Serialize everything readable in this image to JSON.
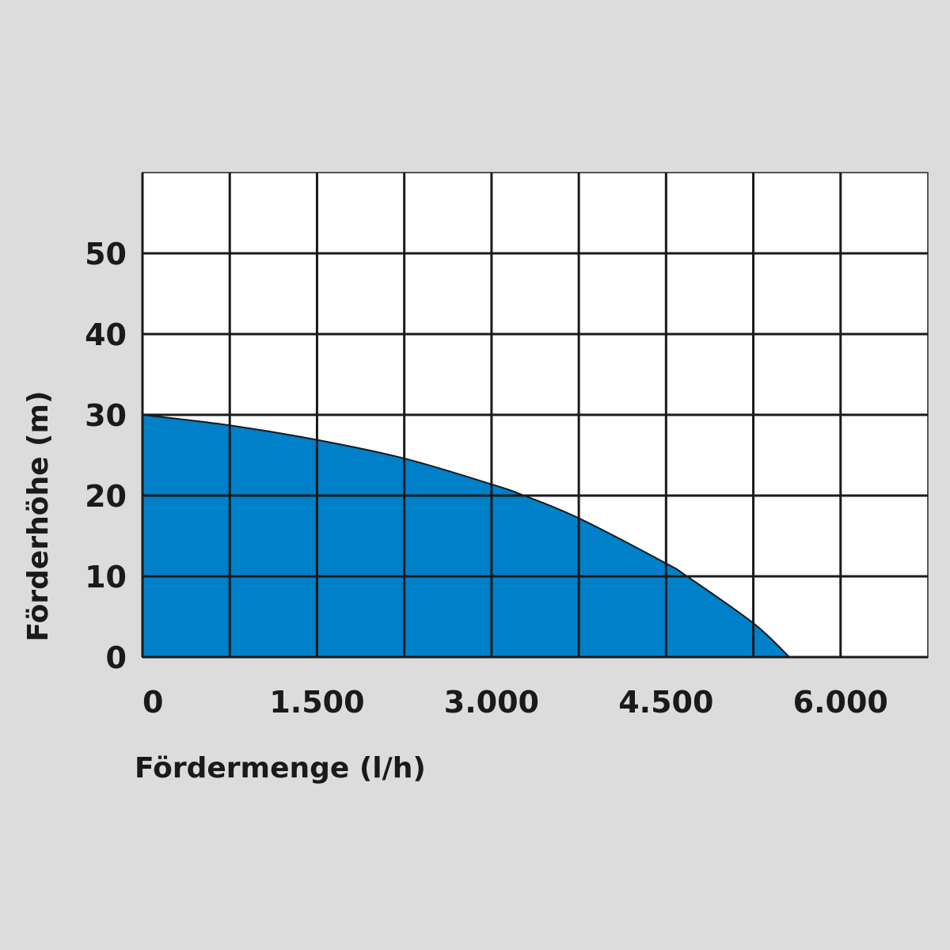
{
  "chart_data": {
    "type": "area",
    "title": "",
    "xlabel": "Fördermenge (l/h)",
    "ylabel": "Förderhöhe (m)",
    "xlim": [
      0,
      6750
    ],
    "ylim": [
      0,
      60
    ],
    "x_grid_step": 750,
    "y_grid_step": 10,
    "grid": true,
    "x_ticks": [
      {
        "value": 0,
        "label": "0"
      },
      {
        "value": 1500,
        "label": "1.500"
      },
      {
        "value": 3000,
        "label": "3.000"
      },
      {
        "value": 4500,
        "label": "4.500"
      },
      {
        "value": 6000,
        "label": "6.000"
      }
    ],
    "y_ticks": [
      {
        "value": 0,
        "label": "0"
      },
      {
        "value": 10,
        "label": "10"
      },
      {
        "value": 20,
        "label": "20"
      },
      {
        "value": 30,
        "label": "30"
      },
      {
        "value": 40,
        "label": "40"
      },
      {
        "value": 50,
        "label": "50"
      }
    ],
    "series": [
      {
        "x": [
          0,
          750,
          1500,
          2250,
          3000,
          3280,
          3750,
          4500,
          4680,
          5250,
          5560
        ],
        "y": [
          30,
          28.7,
          26.9,
          24.6,
          21.4,
          20,
          17.2,
          11.6,
          10,
          4.2,
          0
        ]
      }
    ],
    "colors": {
      "fill": "#0080c8",
      "background": "#dcdcdc",
      "plot": "#ffffff",
      "grid": "#1a1a1a"
    }
  }
}
